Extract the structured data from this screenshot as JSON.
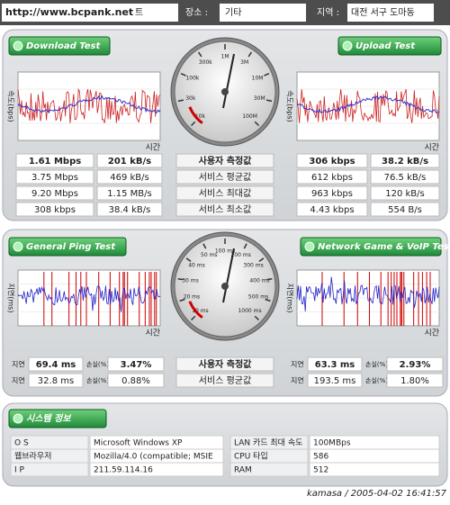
{
  "header": {
    "url": "http://www.bcpank.net",
    "field": "트",
    "location_label": "장소 :",
    "location": "기타",
    "region_label": "지역 :",
    "region": "대전 서구 도마동"
  },
  "speed": {
    "download_title": "Download Test",
    "upload_title": "Upload Test",
    "y_axis_label": "속도(bps)",
    "x_axis_label": "시간",
    "dial_labels": [
      "10k",
      "30k",
      "100k",
      "300k",
      "1M",
      "3M",
      "10M",
      "30M",
      "100M"
    ],
    "row_labels": [
      "사용자 측정값",
      "서비스 평균값",
      "서비스 최대값",
      "서비스 최소값"
    ],
    "download": [
      [
        "1.61 Mbps",
        "201 kB/s"
      ],
      [
        "3.75 Mbps",
        "469 kB/s"
      ],
      [
        "9.20 Mbps",
        "1.15 MB/s"
      ],
      [
        "308 kbps",
        "38.4 kB/s"
      ]
    ],
    "upload": [
      [
        "306 kbps",
        "38.2 kB/s"
      ],
      [
        "612 kbps",
        "76.5 kB/s"
      ],
      [
        "963 kbps",
        "120 kB/s"
      ],
      [
        "4.43 kbps",
        "554 B/s"
      ]
    ]
  },
  "ping": {
    "left_title": "General Ping Test",
    "right_title": "Network Game & VoIP Test",
    "y_axis_label": "지연(ms)",
    "x_axis_label": "시간",
    "dial_labels": [
      "10 ms",
      "20 ms",
      "30 ms",
      "40 ms",
      "50 ms",
      "100 ms",
      "200 ms",
      "300 ms",
      "400 ms",
      "500 ms",
      "1000 ms"
    ],
    "latency_label": "지연",
    "loss_label": "손실(%)",
    "row_labels": [
      "사용자 측정값",
      "서비스 평균값"
    ],
    "left": [
      [
        "69.4 ms",
        "3.47%"
      ],
      [
        "32.8 ms",
        "0.88%"
      ]
    ],
    "right": [
      [
        "63.3 ms",
        "2.93%"
      ],
      [
        "193.5 ms",
        "1.80%"
      ]
    ]
  },
  "system": {
    "title": "시스템 정보",
    "rows": [
      [
        "O S",
        "Microsoft Windows XP",
        "LAN 카드 최대 속도",
        "100MBps"
      ],
      [
        "웹브라우저",
        "Mozilla/4.0 (compatible; MSIE",
        "CPU 타입",
        "586"
      ],
      [
        "I P",
        "211.59.114.16",
        "RAM",
        "512"
      ]
    ]
  },
  "footer": "kamasa / 2005-04-02 16:41:57"
}
